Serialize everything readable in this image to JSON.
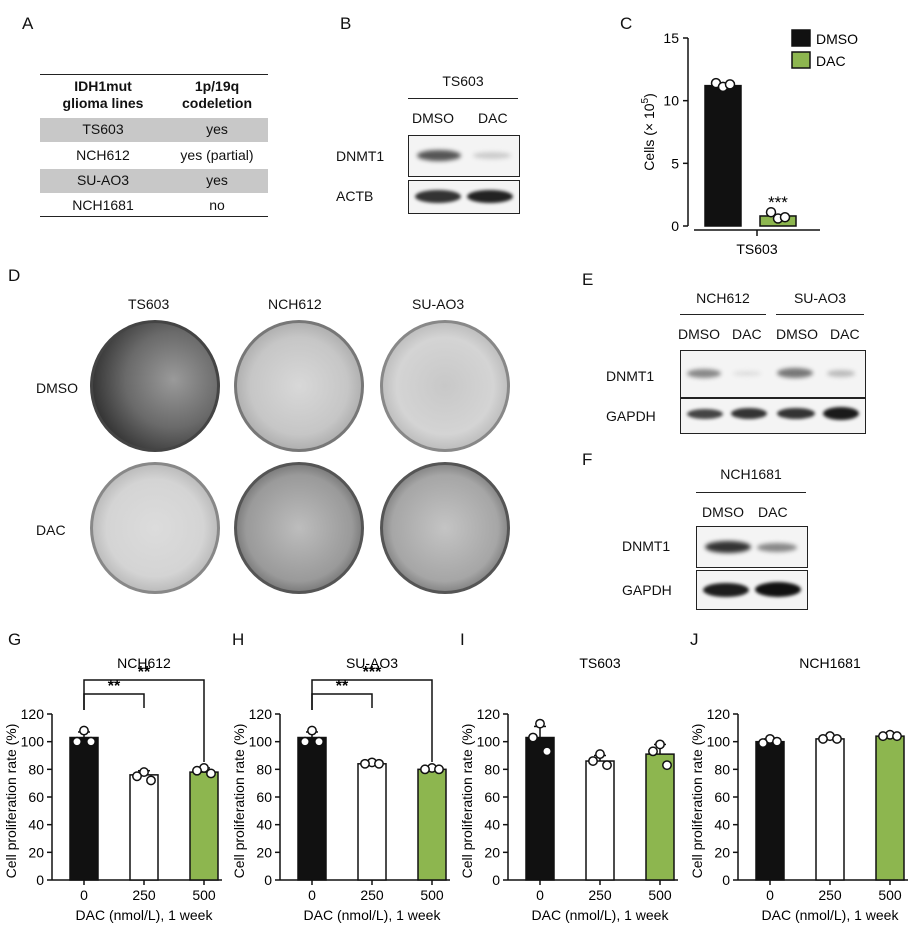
{
  "panels": {
    "A": "A",
    "B": "B",
    "C": "C",
    "D": "D",
    "E": "E",
    "F": "F",
    "G": "G",
    "H": "H",
    "I": "I",
    "J": "J"
  },
  "panelA": {
    "header": [
      "IDH1mut glioma lines",
      "1p/19q codeletion"
    ],
    "header_lines": {
      "col1": [
        "IDH1mut",
        "glioma lines"
      ],
      "col2": [
        "1p/19q",
        "codeletion"
      ]
    },
    "rows": [
      {
        "line": "TS603",
        "codeletion": "yes",
        "shaded": true
      },
      {
        "line": "NCH612",
        "codeletion": "yes (partial)",
        "shaded": false
      },
      {
        "line": "SU-AO3",
        "codeletion": "yes",
        "shaded": true
      },
      {
        "line": "NCH1681",
        "codeletion": "no",
        "shaded": false
      }
    ]
  },
  "panelB": {
    "cell_line": "TS603",
    "lanes": [
      "DMSO",
      "DAC"
    ],
    "proteins": [
      "DNMT1",
      "ACTB"
    ]
  },
  "panelE": {
    "groups": [
      "NCH612",
      "SU-AO3"
    ],
    "lanes": [
      "DMSO",
      "DAC",
      "DMSO",
      "DAC"
    ],
    "proteins": [
      "DNMT1",
      "GAPDH"
    ]
  },
  "panelF": {
    "cell_line": "NCH1681",
    "lanes": [
      "DMSO",
      "DAC"
    ],
    "proteins": [
      "DNMT1",
      "GAPDH"
    ]
  },
  "panelD": {
    "columns": [
      "TS603",
      "NCH612",
      "SU-AO3"
    ],
    "rows": [
      "DMSO",
      "DAC"
    ]
  },
  "colors": {
    "black": "#111111",
    "green": "#8db64f",
    "white": "#ffffff",
    "gray_row": "#c8c8c8"
  },
  "chart_data": [
    {
      "panel": "C",
      "type": "bar",
      "categories": [
        "TS603"
      ],
      "series": [
        {
          "name": "DMSO",
          "values": [
            11.2
          ],
          "color": "#111111",
          "points": [
            11.4,
            11.1,
            11.3
          ]
        },
        {
          "name": "DAC",
          "values": [
            0.8
          ],
          "color": "#8db64f",
          "points": [
            1.1,
            0.6,
            0.7
          ]
        }
      ],
      "significance": "***",
      "ylabel": "Cells (× 10⁵)",
      "ylabel_base": "Cells (× 10",
      "ylabel_sup": "5",
      "ylabel_tail": ")",
      "xlabel": "TS603",
      "yticks": [
        0,
        5,
        10,
        15
      ],
      "ylim": [
        0,
        15
      ],
      "legend": "top-right"
    },
    {
      "panel": "G",
      "type": "bar",
      "title": "NCH612",
      "categories": [
        "0",
        "250",
        "500"
      ],
      "values": [
        103,
        76,
        78
      ],
      "errors": [
        4,
        3,
        3
      ],
      "points": [
        [
          108,
          100,
          100
        ],
        [
          78,
          75,
          72
        ],
        [
          81,
          79,
          77
        ]
      ],
      "colors": [
        "#111111",
        "#ffffff",
        "#8db64f"
      ],
      "brackets": [
        {
          "from": 0,
          "to": 1,
          "label": "**"
        },
        {
          "from": 0,
          "to": 2,
          "label": "**"
        }
      ],
      "ylabel": "Cell proliferation rate (%)",
      "xlabel": "DAC (nmol/L), 1 week",
      "yticks": [
        0,
        20,
        40,
        60,
        80,
        100,
        120
      ],
      "ylim": [
        0,
        120
      ]
    },
    {
      "panel": "H",
      "type": "bar",
      "title": "SU-AO3",
      "categories": [
        "0",
        "250",
        "500"
      ],
      "values": [
        103,
        84,
        80
      ],
      "errors": [
        4,
        1,
        1
      ],
      "points": [
        [
          108,
          100,
          100
        ],
        [
          85,
          84,
          84
        ],
        [
          81,
          80,
          80
        ]
      ],
      "colors": [
        "#111111",
        "#ffffff",
        "#8db64f"
      ],
      "brackets": [
        {
          "from": 0,
          "to": 1,
          "label": "**"
        },
        {
          "from": 0,
          "to": 2,
          "label": "***"
        }
      ],
      "ylabel": "Cell proliferation rate (%)",
      "xlabel": "DAC (nmol/L), 1 week",
      "yticks": [
        0,
        20,
        40,
        60,
        80,
        100,
        120
      ],
      "ylim": [
        0,
        120
      ]
    },
    {
      "panel": "I",
      "type": "bar",
      "title": "TS603",
      "categories": [
        "0",
        "250",
        "500"
      ],
      "values": [
        103,
        86,
        91
      ],
      "errors": [
        8,
        4,
        7
      ],
      "points": [
        [
          113,
          103,
          93
        ],
        [
          91,
          86,
          83
        ],
        [
          98,
          93,
          83
        ]
      ],
      "colors": [
        "#111111",
        "#ffffff",
        "#8db64f"
      ],
      "brackets": [],
      "ylabel": "Cell proliferation rate (%)",
      "xlabel": "DAC (nmol/L), 1 week",
      "yticks": [
        0,
        20,
        40,
        60,
        80,
        100,
        120
      ],
      "ylim": [
        0,
        120
      ]
    },
    {
      "panel": "J",
      "type": "bar",
      "title": "NCH1681",
      "categories": [
        "0",
        "250",
        "500"
      ],
      "values": [
        100,
        102,
        104
      ],
      "errors": [
        2,
        1,
        1
      ],
      "points": [
        [
          102,
          99,
          100
        ],
        [
          104,
          102,
          102
        ],
        [
          105,
          104,
          104
        ]
      ],
      "colors": [
        "#111111",
        "#ffffff",
        "#8db64f"
      ],
      "brackets": [],
      "ylabel": "Cell proliferation rate (%)",
      "xlabel": "DAC (nmol/L), 1 week",
      "yticks": [
        0,
        20,
        40,
        60,
        80,
        100,
        120
      ],
      "ylim": [
        0,
        120
      ]
    }
  ]
}
